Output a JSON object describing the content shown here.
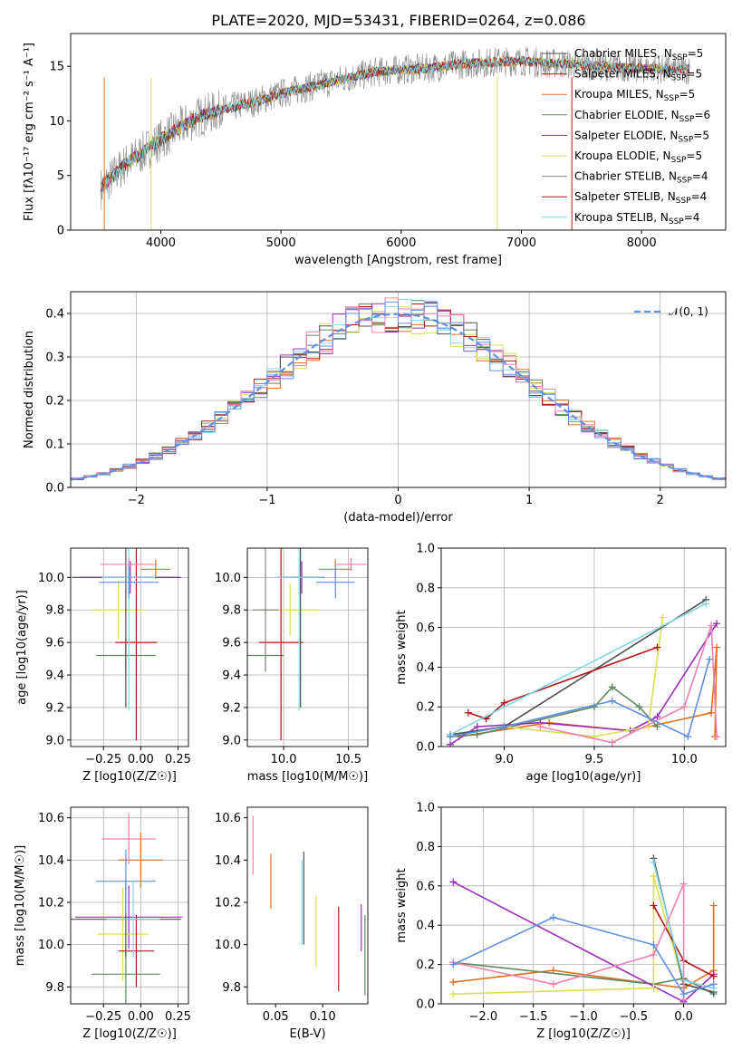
{
  "colors": [
    "#e0701e",
    "#5f8a60",
    "#9b2fbb",
    "#d8e050",
    "#505050",
    "#b01818",
    "#80d8e8",
    "#8a8a8a",
    "#f080b0",
    "#6090e0",
    "#90d0e8"
  ],
  "chart_data": [
    {
      "id": "spectrum",
      "type": "line",
      "title": "PLATE=2020, MJD=53431, FIBERID=0264, z=0.086",
      "xlabel": "wavelength [Angstrom, rest frame]",
      "ylabel": "Flux [f$_\\lambda$10$^{-17}$ erg cm$^{-2}$ s$^{-1}$ A$^{-1}$]",
      "ylabel_text": "Flux [fλ10⁻¹⁷ erg cm⁻² s⁻¹ A⁻¹]",
      "xlim": [
        3250,
        8700
      ],
      "ylim": [
        0,
        18
      ],
      "xticks": [
        "4000",
        "5000",
        "6000",
        "7000",
        "8000"
      ],
      "yticks": [
        "0",
        "5",
        "10",
        "15"
      ],
      "grid": false,
      "legend": "right",
      "continuum": {
        "x": [
          3500,
          3700,
          3900,
          4100,
          4300,
          4500,
          4800,
          5000,
          5200,
          5500,
          5800,
          6000,
          6200,
          6500,
          6800,
          7000,
          7200,
          7400,
          7800,
          8200,
          8400
        ],
        "y": [
          3.8,
          6.0,
          7.5,
          9.0,
          10.3,
          11.0,
          11.8,
          12.5,
          13.0,
          13.8,
          14.5,
          14.7,
          14.8,
          15.2,
          15.4,
          15.5,
          15.3,
          15.2,
          14.9,
          14.7,
          14.7
        ]
      },
      "series": [
        {
          "name": "Chabrier MILES, N$_{SSP}$=5",
          "label": "Chabrier MILES, N",
          "sub": "SSP",
          "tail": "=5"
        },
        {
          "name": "Salpeter MILES, N$_{SSP}$=5",
          "label": "Salpeter MILES, N",
          "sub": "SSP",
          "tail": "=5"
        },
        {
          "name": "Kroupa MILES, N$_{SSP}$=5",
          "label": "Kroupa MILES, N",
          "sub": "SSP",
          "tail": "=5"
        },
        {
          "name": "Chabrier ELODIE, N$_{SSP}$=6",
          "label": "Chabrier ELODIE, N",
          "sub": "SSP",
          "tail": "=6"
        },
        {
          "name": "Salpeter ELODIE, N$_{SSP}$=5",
          "label": "Salpeter ELODIE, N",
          "sub": "SSP",
          "tail": "=5"
        },
        {
          "name": "Kroupa ELODIE, N$_{SSP}$=5",
          "label": "Kroupa ELODIE, N",
          "sub": "SSP",
          "tail": "=5"
        },
        {
          "name": "Chabrier STELIB, N$_{SSP}$=4",
          "label": "Chabrier STELIB, N",
          "sub": "SSP",
          "tail": "=4"
        },
        {
          "name": "Salpeter STELIB, N$_{SSP}$=4",
          "label": "Salpeter STELIB, N",
          "sub": "SSP",
          "tail": "=4"
        },
        {
          "name": "Kroupa STELIB, N$_{SSP}$=4",
          "label": "Kroupa STELIB, N",
          "sub": "SSP",
          "tail": "=4"
        }
      ]
    },
    {
      "id": "residuals",
      "type": "line",
      "xlabel": "(data-model)/error",
      "ylabel": "Normed distribution",
      "xlim": [
        -2.5,
        2.5
      ],
      "ylim": [
        0,
        0.45
      ],
      "xticks": [
        "−2",
        "−1",
        "0",
        "1",
        "2"
      ],
      "yticks": [
        "0.0",
        "0.1",
        "0.2",
        "0.3",
        "0.4"
      ],
      "grid": true,
      "legend": "top-right",
      "reference": {
        "name": "$\\mathcal{N}(0,1)$",
        "label": "𝒩(0, 1)",
        "color": "#6090e0",
        "sigma": 1.0
      }
    },
    {
      "id": "age_vs_Z",
      "type": "scatter",
      "xlabel": "Z [log10(Z/Z☉)]",
      "ylabel": "age  [log10(age/yr)]",
      "xlim": [
        -0.47,
        0.32
      ],
      "ylim": [
        8.96,
        10.18
      ],
      "xticks": [
        "−0.25",
        "0.00",
        "0.25"
      ],
      "yticks": [
        "9.0",
        "9.2",
        "9.4",
        "9.6",
        "9.8",
        "10.0"
      ],
      "grid": true,
      "points": [
        {
          "x": 0.1,
          "y": 10.05,
          "xerr": 0.1,
          "yerr": 0.06,
          "c": 0
        },
        {
          "x": -0.1,
          "y": 9.52,
          "xerr": 0.2,
          "yerr": 0.11,
          "c": 1
        },
        {
          "x": -0.07,
          "y": 10.0,
          "xerr": 0.34,
          "yerr": 0.1,
          "c": 2
        },
        {
          "x": -0.15,
          "y": 9.8,
          "xerr": 0.18,
          "yerr": 0.18,
          "c": 3
        },
        {
          "x": -0.1,
          "y": 10.0,
          "xerr": 0.36,
          "yerr": 0.8,
          "c": 4
        },
        {
          "x": -0.03,
          "y": 9.6,
          "xerr": 0.14,
          "yerr": 0.6,
          "c": 5
        },
        {
          "x": -0.08,
          "y": 10.0,
          "xerr": 0.18,
          "yerr": 0.82,
          "c": 6
        },
        {
          "x": -0.08,
          "y": 10.08,
          "xerr": 0.19,
          "yerr": 0.04,
          "c": 8
        },
        {
          "x": -0.08,
          "y": 9.97,
          "xerr": 0.2,
          "yerr": 0.1,
          "c": 9
        }
      ]
    },
    {
      "id": "age_vs_mass",
      "type": "scatter",
      "xlabel": "mass [log10(M/M☉)]",
      "ylabel": "",
      "xlim": [
        9.72,
        10.65
      ],
      "ylim": [
        8.96,
        10.18
      ],
      "xticks": [
        "10.0",
        "10.5"
      ],
      "yticks": [
        "9.0",
        "9.2",
        "9.4",
        "9.6",
        "9.8",
        "10.0"
      ],
      "grid": true,
      "points": [
        {
          "x": 10.4,
          "y": 10.05,
          "xerr": 0.13,
          "yerr": 0.06,
          "c": 0
        },
        {
          "x": 9.86,
          "y": 9.52,
          "xerr": 0.14,
          "yerr": 0.1,
          "c": 1
        },
        {
          "x": 10.14,
          "y": 10.0,
          "xerr": 0.15,
          "yerr": 0.1,
          "c": 2
        },
        {
          "x": 10.05,
          "y": 9.8,
          "xerr": 0.22,
          "yerr": 0.16,
          "c": 3
        },
        {
          "x": 10.13,
          "y": 10.0,
          "xerr": 0.18,
          "yerr": 0.8,
          "c": 4
        },
        {
          "x": 9.98,
          "y": 9.6,
          "xerr": 0.17,
          "yerr": 0.6,
          "c": 5
        },
        {
          "x": 10.12,
          "y": 10.0,
          "xerr": 0.18,
          "yerr": 0.82,
          "c": 6
        },
        {
          "x": 9.86,
          "y": 9.8,
          "xerr": 0.1,
          "yerr": 0.38,
          "c": 7
        },
        {
          "x": 10.52,
          "y": 10.08,
          "xerr": 0.12,
          "yerr": 0.04,
          "c": 8
        },
        {
          "x": 10.4,
          "y": 9.97,
          "xerr": 0.15,
          "yerr": 0.1,
          "c": 9
        }
      ]
    },
    {
      "id": "massweight_vs_age",
      "type": "line",
      "xlabel": "age  [log10(age/yr)]",
      "ylabel": "mass weight",
      "xlim": [
        8.65,
        10.23
      ],
      "ylim": [
        0,
        1
      ],
      "xticks": [
        "9.0",
        "9.5",
        "10.0"
      ],
      "yticks": [
        "0.0",
        "0.2",
        "0.4",
        "0.6",
        "0.8",
        "1.0"
      ],
      "grid": true,
      "series": [
        {
          "c": 0,
          "x": [
            8.75,
            9.25,
            9.7,
            10.15,
            10.18,
            10.17
          ],
          "y": [
            0.05,
            0.12,
            0.08,
            0.17,
            0.5,
            0.05
          ]
        },
        {
          "c": 1,
          "x": [
            8.7,
            8.85,
            9.5,
            9.6,
            9.75,
            9.85
          ],
          "y": [
            0.05,
            0.06,
            0.2,
            0.3,
            0.2,
            0.1
          ]
        },
        {
          "c": 2,
          "x": [
            8.7,
            8.85,
            9.2,
            9.7,
            9.85,
            10.18
          ],
          "y": [
            0.01,
            0.1,
            0.12,
            0.08,
            0.15,
            0.62
          ]
        },
        {
          "c": 3,
          "x": [
            8.7,
            9.0,
            9.5,
            9.8,
            9.88
          ],
          "y": [
            0.06,
            0.1,
            0.05,
            0.1,
            0.65
          ]
        },
        {
          "c": 4,
          "x": [
            8.7,
            9.0,
            10.12
          ],
          "y": [
            0.06,
            0.1,
            0.74
          ]
        },
        {
          "c": 5,
          "x": [
            8.8,
            8.9,
            9.0,
            9.85
          ],
          "y": [
            0.17,
            0.14,
            0.22,
            0.5
          ]
        },
        {
          "c": 6,
          "x": [
            8.7,
            10.12
          ],
          "y": [
            0.06,
            0.72
          ]
        },
        {
          "c": 8,
          "x": [
            9.2,
            9.6,
            10.0,
            10.15,
            10.18
          ],
          "y": [
            0.1,
            0.02,
            0.2,
            0.61,
            0.05
          ]
        },
        {
          "c": 9,
          "x": [
            8.7,
            9.0,
            9.6,
            10.02,
            10.14
          ],
          "y": [
            0.05,
            0.1,
            0.23,
            0.05,
            0.44
          ]
        }
      ]
    },
    {
      "id": "mass_vs_Z",
      "type": "scatter",
      "xlabel": "Z [log10(Z/Z☉)]",
      "ylabel": "mass [log10(M/M☉)]",
      "xlim": [
        -0.47,
        0.32
      ],
      "ylim": [
        9.72,
        10.65
      ],
      "xticks": [
        "−0.25",
        "0.00",
        "0.25"
      ],
      "yticks": [
        "9.8",
        "10.0",
        "10.2",
        "10.4",
        "10.6"
      ],
      "grid": true,
      "points": [
        {
          "x": 0.0,
          "y": 10.4,
          "xerr": 0.15,
          "yerr": 0.13,
          "c": 0
        },
        {
          "x": -0.1,
          "y": 9.86,
          "xerr": 0.23,
          "yerr": 0.14,
          "c": 1
        },
        {
          "x": -0.08,
          "y": 10.13,
          "xerr": 0.36,
          "yerr": 0.15,
          "c": 2
        },
        {
          "x": -0.12,
          "y": 10.05,
          "xerr": 0.17,
          "yerr": 0.22,
          "c": 3
        },
        {
          "x": -0.1,
          "y": 10.12,
          "xerr": 0.37,
          "yerr": 0.18,
          "c": 4
        },
        {
          "x": -0.03,
          "y": 9.97,
          "xerr": 0.12,
          "yerr": 0.17,
          "c": 5
        },
        {
          "x": -0.05,
          "y": 10.12,
          "xerr": 0.18,
          "yerr": 0.18,
          "c": 6
        },
        {
          "x": -0.08,
          "y": 10.5,
          "xerr": 0.18,
          "yerr": 0.12,
          "c": 8
        },
        {
          "x": -0.1,
          "y": 10.3,
          "xerr": 0.2,
          "yerr": 0.15,
          "c": 9
        }
      ]
    },
    {
      "id": "mass_vs_ebv",
      "type": "scatter",
      "xlabel": "E(B-V)",
      "ylabel": "",
      "xlim": [
        0.02,
        0.148
      ],
      "ylim": [
        9.72,
        10.65
      ],
      "xticks": [
        "0.05",
        "0.10"
      ],
      "yticks": [
        "9.8",
        "10.0",
        "10.2",
        "10.4",
        "10.6"
      ],
      "grid": false,
      "points": [
        {
          "x": 0.026,
          "y": 10.47,
          "yerr": 0.14,
          "c": 8
        },
        {
          "x": 0.045,
          "y": 10.3,
          "yerr": 0.13,
          "c": 0
        },
        {
          "x": 0.078,
          "y": 10.2,
          "yerr": 0.2,
          "c": 6
        },
        {
          "x": 0.08,
          "y": 10.22,
          "yerr": 0.22,
          "c": 4
        },
        {
          "x": 0.093,
          "y": 10.06,
          "yerr": 0.17,
          "c": 3
        },
        {
          "x": 0.117,
          "y": 9.98,
          "yerr": 0.2,
          "c": 5
        },
        {
          "x": 0.141,
          "y": 10.08,
          "yerr": 0.11,
          "c": 2
        },
        {
          "x": 0.145,
          "y": 9.95,
          "yerr": 0.19,
          "c": 1
        }
      ]
    },
    {
      "id": "massweight_vs_Z",
      "type": "line",
      "xlabel": "Z [log10(Z/Z☉)]",
      "ylabel": "mass weight",
      "xlim": [
        -2.42,
        0.42
      ],
      "ylim": [
        0,
        1
      ],
      "xticks": [
        "−2.0",
        "−1.5",
        "−1.0",
        "−0.5",
        "0.0"
      ],
      "yticks": [
        "0.0",
        "0.2",
        "0.4",
        "0.6",
        "0.8",
        "1.0"
      ],
      "grid": true,
      "series": [
        {
          "c": 0,
          "x": [
            -2.3,
            -1.3,
            0.0,
            0.3,
            0.3
          ],
          "y": [
            0.11,
            0.17,
            0.08,
            0.17,
            0.5
          ]
        },
        {
          "c": 1,
          "x": [
            -2.3,
            -0.3,
            0.0,
            0.3
          ],
          "y": [
            0.21,
            0.1,
            0.13,
            0.05
          ]
        },
        {
          "c": 2,
          "x": [
            -2.3,
            0.0,
            0.3
          ],
          "y": [
            0.62,
            0.01,
            0.15
          ]
        },
        {
          "c": 3,
          "x": [
            -2.3,
            -0.3,
            -0.3,
            0.0
          ],
          "y": [
            0.05,
            0.08,
            0.65,
            0.1
          ]
        },
        {
          "c": 4,
          "x": [
            -0.3,
            0.0,
            0.3
          ],
          "y": [
            0.74,
            0.1,
            0.06
          ]
        },
        {
          "c": 5,
          "x": [
            -0.3,
            0.0,
            0.3
          ],
          "y": [
            0.5,
            0.22,
            0.14
          ]
        },
        {
          "c": 6,
          "x": [
            -0.3,
            0.0,
            0.3
          ],
          "y": [
            0.72,
            0.12,
            0.08
          ]
        },
        {
          "c": 8,
          "x": [
            -2.3,
            -1.3,
            -0.3,
            0.0,
            0.0
          ],
          "y": [
            0.21,
            0.1,
            0.25,
            0.61,
            0.02
          ]
        },
        {
          "c": 9,
          "x": [
            -2.3,
            -1.3,
            -0.3,
            0.0,
            0.3
          ],
          "y": [
            0.2,
            0.44,
            0.3,
            0.05,
            0.1
          ]
        }
      ]
    }
  ]
}
